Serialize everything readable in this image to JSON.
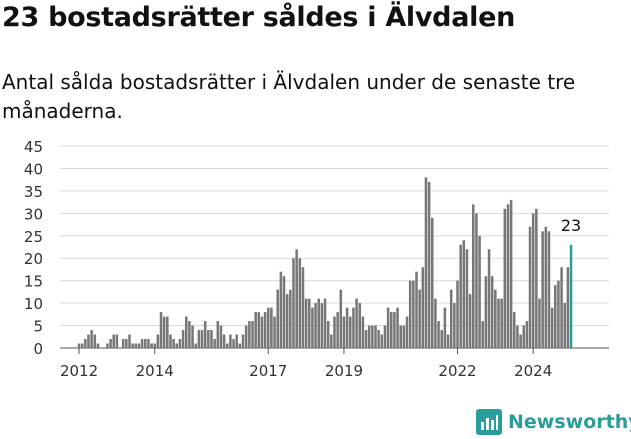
{
  "title": "23 bostadsrätter såldes i Älvdalen",
  "subtitle": "Antal sålda bostadsrätter i Älvdalen under de senaste tre månaderna.",
  "brand": {
    "name": "Newsworthy",
    "color": "#2a9d9b"
  },
  "chart_data": {
    "type": "bar",
    "ylim": [
      0,
      45
    ],
    "yticks": [
      0,
      5,
      10,
      15,
      20,
      25,
      30,
      35,
      40,
      45
    ],
    "xlim": [
      2011.55,
      2025.95
    ],
    "xticks": [
      "2012",
      "2014",
      "2017",
      "2019",
      "2022",
      "2024"
    ],
    "grid": true,
    "bar_color": "#777777",
    "highlight_color": "#2a9d9b",
    "highlight_label": "23",
    "start": "2012-01",
    "values": [
      1,
      1,
      2,
      3,
      4,
      3,
      1,
      0,
      0,
      1,
      2,
      3,
      3,
      0,
      2,
      2,
      3,
      1,
      1,
      1,
      2,
      2,
      2,
      1,
      1,
      3,
      8,
      7,
      7,
      3,
      2,
      1,
      2,
      4,
      7,
      6,
      5,
      1,
      4,
      4,
      6,
      4,
      4,
      2,
      6,
      5,
      3,
      1,
      3,
      2,
      3,
      1,
      3,
      5,
      6,
      6,
      8,
      8,
      7,
      8,
      9,
      9,
      7,
      13,
      17,
      16,
      12,
      13,
      20,
      22,
      20,
      18,
      11,
      11,
      9,
      10,
      11,
      10,
      11,
      6,
      3,
      7,
      8,
      13,
      7,
      9,
      7,
      9,
      11,
      10,
      7,
      4,
      5,
      5,
      5,
      4,
      3,
      5,
      9,
      8,
      8,
      9,
      5,
      5,
      7,
      15,
      15,
      17,
      13,
      18,
      38,
      37,
      29,
      11,
      6,
      4,
      9,
      3,
      13,
      10,
      15,
      23,
      24,
      22,
      12,
      32,
      30,
      25,
      6,
      16,
      22,
      16,
      13,
      11,
      11,
      31,
      32,
      33,
      8,
      5,
      3,
      5,
      6,
      27,
      30,
      31,
      11,
      26,
      27,
      26,
      9,
      14,
      15,
      18,
      10,
      18,
      23
    ]
  }
}
